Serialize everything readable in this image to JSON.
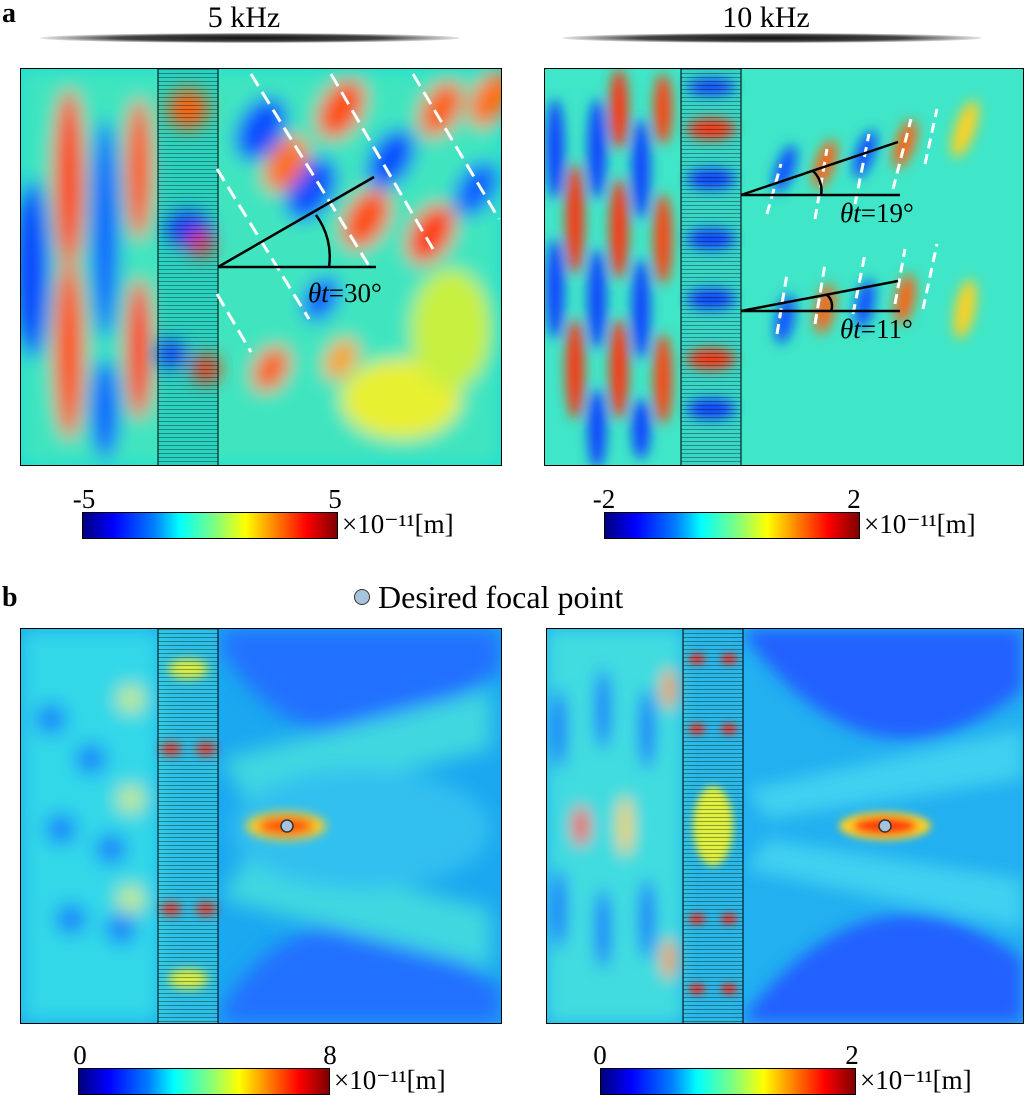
{
  "panel_a": {
    "label": "a",
    "left_title": "5 kHz",
    "right_title": "10 kHz",
    "left_angle_symbol": "θt",
    "left_angle_value": "=30°",
    "right_angle1_symbol": "θt",
    "right_angle1_value": "=19°",
    "right_angle2_symbol": "θt",
    "right_angle2_value": "=11°",
    "left_colorbar": {
      "min": "-5",
      "max": "5",
      "unit": "×10⁻¹¹[m]"
    },
    "right_colorbar": {
      "min": "-2",
      "max": "2",
      "unit": "×10⁻¹¹[m]"
    }
  },
  "panel_b": {
    "label": "b",
    "legend_label": "Desired focal point",
    "left_colorbar": {
      "min": "0",
      "max": "8",
      "unit": "×10⁻¹¹[m]"
    },
    "right_colorbar": {
      "min": "0",
      "max": "2",
      "unit": "×10⁻¹¹[m]"
    }
  },
  "colors": {
    "focal_point": "#a8c4dc",
    "guide_line": "#ffffff",
    "angle_line": "#000000"
  }
}
